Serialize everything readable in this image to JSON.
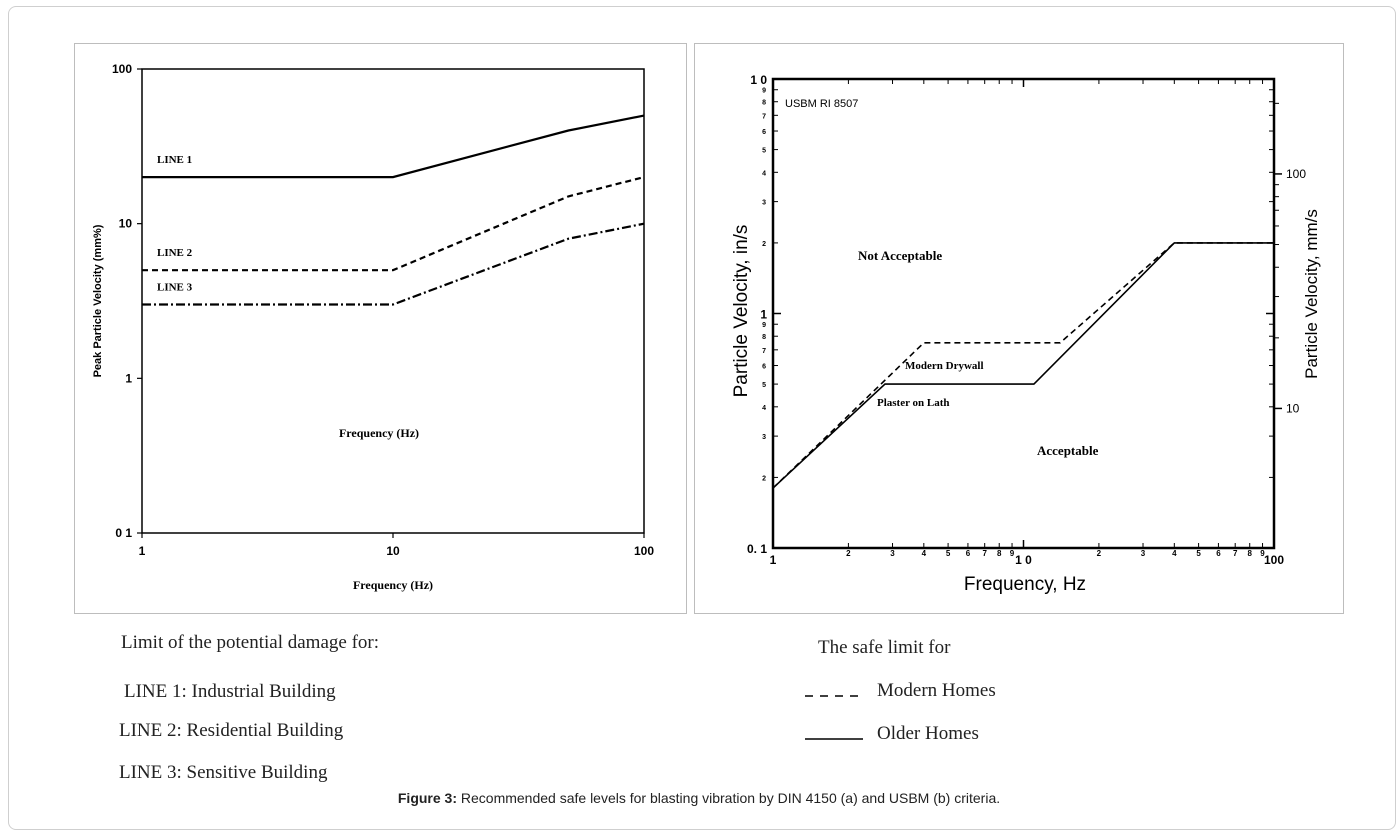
{
  "chart_data": [
    {
      "type": "line",
      "title": "",
      "xlabel": "Frequency (Hz)",
      "ylabel": "Peak Particle Velocity (mm%)",
      "x_scale": "log",
      "y_scale": "log",
      "xlim": [
        1,
        100
      ],
      "ylim": [
        0.1,
        100
      ],
      "x_ticks": [
        "1",
        "10",
        "100"
      ],
      "y_ticks": [
        "0 1",
        "1",
        "10",
        "100"
      ],
      "inner_label": "Frequency (Hz)",
      "series": [
        {
          "name": "LINE 1",
          "style": "solid",
          "x": [
            1,
            10,
            50,
            100
          ],
          "y": [
            20,
            20,
            40,
            50
          ]
        },
        {
          "name": "LINE 2",
          "style": "dashed",
          "x": [
            1,
            10,
            50,
            100
          ],
          "y": [
            5,
            5,
            15,
            20
          ]
        },
        {
          "name": "LINE 3",
          "style": "dashdot",
          "x": [
            1,
            10,
            50,
            100
          ],
          "y": [
            3,
            3,
            8,
            10
          ]
        }
      ]
    },
    {
      "type": "line",
      "title": "",
      "annotation": "USBM RI 8507",
      "xlabel": "Frequency, Hz",
      "ylabel": "Particle Velocity, in/s",
      "ylabel_right": "Particle Velocity, mm/s",
      "x_scale": "log",
      "y_scale": "log",
      "xlim": [
        1,
        100
      ],
      "ylim": [
        0.1,
        10
      ],
      "x_ticks_major": [
        "1",
        "1 0",
        "100"
      ],
      "x_ticks_minor": [
        "2",
        "3",
        "4",
        "5",
        "6",
        "7",
        "8",
        "9"
      ],
      "y_ticks_major": [
        "0. 1",
        "1",
        "1 0"
      ],
      "y_ticks_minor": [
        "2",
        "3",
        "4",
        "5",
        "6",
        "7",
        "8",
        "9"
      ],
      "y_right_ticks": [
        "10",
        "100"
      ],
      "region_labels": [
        "Not Acceptable",
        "Acceptable"
      ],
      "series": [
        {
          "name": "Modern Drywall",
          "style": "dashed",
          "x": [
            1,
            4,
            14,
            40,
            100
          ],
          "y": [
            0.18,
            0.75,
            0.75,
            2,
            2
          ]
        },
        {
          "name": "Plaster on Lath",
          "style": "solid",
          "x": [
            1,
            2.8,
            11,
            40,
            100
          ],
          "y": [
            0.18,
            0.5,
            0.5,
            2,
            2
          ]
        }
      ]
    }
  ],
  "left_caption": {
    "heading": "Limit of the  potential damage for:",
    "items": [
      "LINE 1: Industrial Building",
      "LINE 2: Residential  Building",
      "LINE 3: Sensitive  Building"
    ]
  },
  "right_caption": {
    "heading": "The safe limit for",
    "items": [
      {
        "label": "Modern Homes",
        "style": "dashed"
      },
      {
        "label": "Older Homes",
        "style": "solid"
      }
    ]
  },
  "figure_caption": {
    "label": "Figure 3:",
    "text": " Recommended safe levels for blasting vibration by DIN 4150 (a) and USBM (b) criteria."
  }
}
